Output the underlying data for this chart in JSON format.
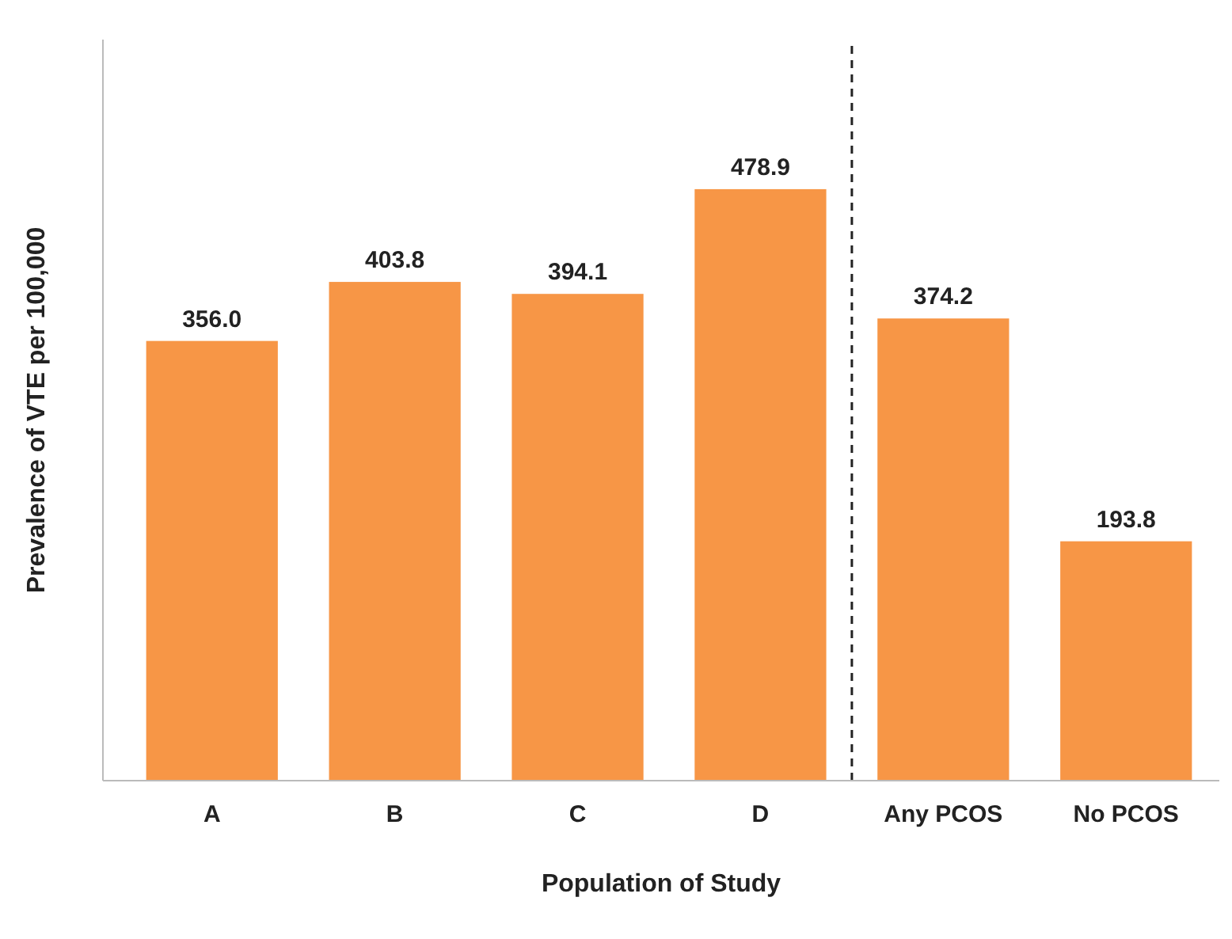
{
  "chart_data": {
    "type": "bar",
    "xlabel": "Population of Study",
    "ylabel": "Prevalence of VTE per 100,000",
    "categories": [
      "A",
      "B",
      "C",
      "D",
      "Any PCOS",
      "No PCOS"
    ],
    "values": [
      356.0,
      403.8,
      394.1,
      478.9,
      374.2,
      193.8
    ],
    "value_labels": [
      "356.0",
      "403.8",
      "394.1",
      "478.9",
      "374.2",
      "193.8"
    ],
    "color": "#f79646",
    "ylim": [
      0,
      600
    ],
    "tick_labels": "x"
  }
}
